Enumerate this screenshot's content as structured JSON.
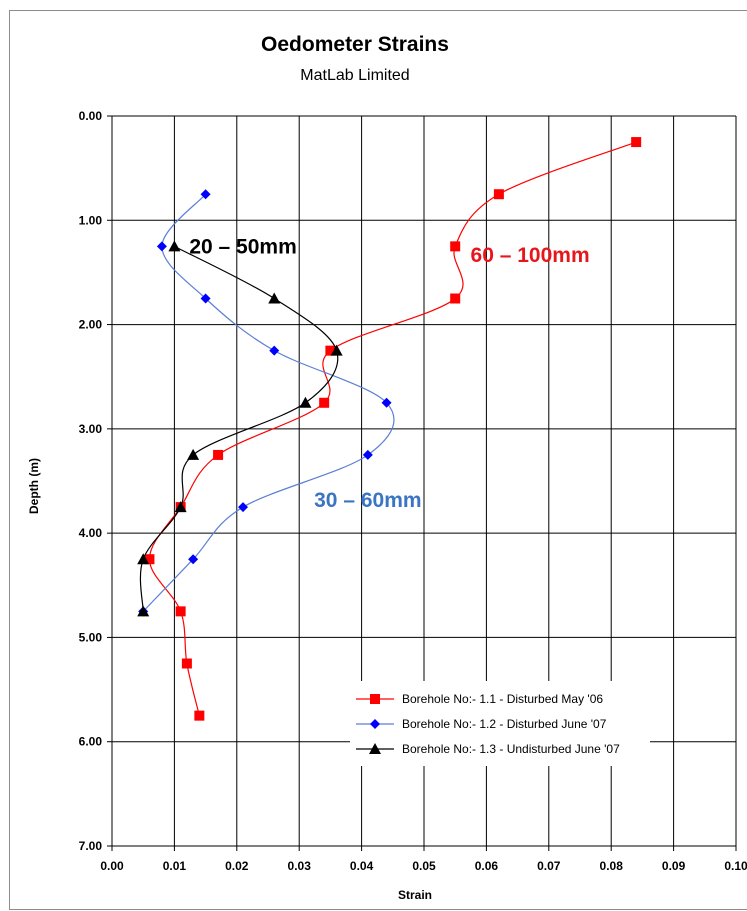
{
  "chart_data": {
    "type": "line",
    "title": "Oedometer Strains",
    "subtitle": "MatLab Limited",
    "xlabel": "Strain",
    "ylabel": "Depth (m)",
    "xlim": [
      0,
      0.1
    ],
    "ylim": [
      0,
      7.0
    ],
    "y_inverted": true,
    "x_ticks": [
      "0.00",
      "0.01",
      "0.02",
      "0.03",
      "0.04",
      "0.05",
      "0.06",
      "0.07",
      "0.08",
      "0.09",
      "0.10"
    ],
    "y_ticks": [
      "0.00",
      "1.00",
      "2.00",
      "3.00",
      "4.00",
      "5.00",
      "6.00",
      "7.00"
    ],
    "grid": true,
    "legend_position": "bottom-right",
    "series": [
      {
        "name": "Borehole No:- 1.1 - Disturbed May '06",
        "color": "#ff0000",
        "marker": "square",
        "points": [
          {
            "x": 0.084,
            "y": 0.25
          },
          {
            "x": 0.062,
            "y": 0.75
          },
          {
            "x": 0.055,
            "y": 1.25
          },
          {
            "x": 0.055,
            "y": 1.75
          },
          {
            "x": 0.035,
            "y": 2.25
          },
          {
            "x": 0.034,
            "y": 2.75
          },
          {
            "x": 0.017,
            "y": 3.25
          },
          {
            "x": 0.011,
            "y": 3.75
          },
          {
            "x": 0.006,
            "y": 4.25
          },
          {
            "x": 0.011,
            "y": 4.75
          },
          {
            "x": 0.012,
            "y": 5.25
          },
          {
            "x": 0.014,
            "y": 5.75
          }
        ]
      },
      {
        "name": "Borehole No:- 1.2 - Disturbed June '07",
        "color": "#0000ff",
        "line_color": "#5b7fd6",
        "marker": "diamond",
        "points": [
          {
            "x": 0.015,
            "y": 0.75
          },
          {
            "x": 0.008,
            "y": 1.25
          },
          {
            "x": 0.015,
            "y": 1.75
          },
          {
            "x": 0.026,
            "y": 2.25
          },
          {
            "x": 0.044,
            "y": 2.75
          },
          {
            "x": 0.041,
            "y": 3.25
          },
          {
            "x": 0.021,
            "y": 3.75
          },
          {
            "x": 0.013,
            "y": 4.25
          },
          {
            "x": 0.005,
            "y": 4.75
          }
        ]
      },
      {
        "name": "Borehole No:- 1.3 - Undisturbed June '07",
        "color": "#000000",
        "marker": "triangle",
        "points": [
          {
            "x": 0.01,
            "y": 1.25
          },
          {
            "x": 0.026,
            "y": 1.75
          },
          {
            "x": 0.036,
            "y": 2.25
          },
          {
            "x": 0.031,
            "y": 2.75
          },
          {
            "x": 0.013,
            "y": 3.25
          },
          {
            "x": 0.011,
            "y": 3.75
          },
          {
            "x": 0.005,
            "y": 4.25
          },
          {
            "x": 0.005,
            "y": 4.75
          }
        ]
      }
    ],
    "annotations": [
      {
        "text": "20 – 50mm",
        "color": "#000000",
        "x": 0.021,
        "y": 1.32
      },
      {
        "text": "60 – 100mm",
        "color": "#e8161b",
        "x": 0.067,
        "y": 1.4
      },
      {
        "text": "30 – 60mm",
        "color": "#3a75c4",
        "x": 0.041,
        "y": 3.75
      }
    ]
  }
}
